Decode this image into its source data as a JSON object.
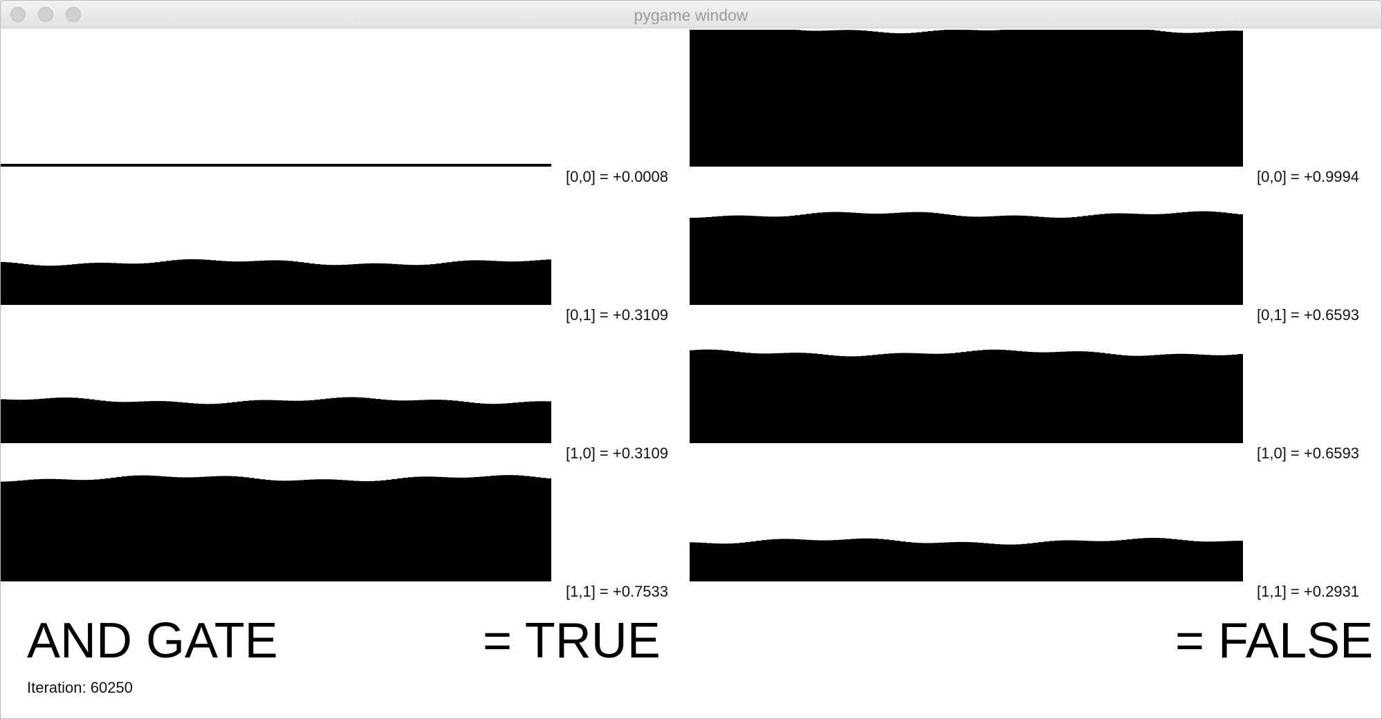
{
  "window": {
    "title": "pygame window"
  },
  "colors": {
    "bar": "#000000",
    "background": "#ffffff"
  },
  "panels": [
    {
      "side": "true",
      "rows": [
        {
          "label": "[0,0] = +0.0008",
          "value": 0.0008,
          "spikes": []
        },
        {
          "label": "[0,1] = +0.3109",
          "value": 0.3109,
          "spikes": []
        },
        {
          "label": "[1,0] = +0.3109",
          "value": 0.3109,
          "spikes": []
        },
        {
          "label": "[1,1] = +0.7533",
          "value": 0.7533,
          "spikes": []
        }
      ]
    },
    {
      "side": "false",
      "rows": [
        {
          "label": "[0,0] = +0.9994",
          "value": 0.9994,
          "spikes": []
        },
        {
          "label": "[0,1] = +0.6593",
          "value": 0.6593,
          "spikes": []
        },
        {
          "label": "[1,0] = +0.6593",
          "value": 0.6593,
          "spikes": []
        },
        {
          "label": "[1,1] = +0.2931",
          "value": 0.2931,
          "spikes": []
        }
      ]
    }
  ],
  "gate_title": "AND GATE",
  "result_true": "= TRUE",
  "result_false": "= FALSE",
  "iteration_text": "Iteration: 60250"
}
